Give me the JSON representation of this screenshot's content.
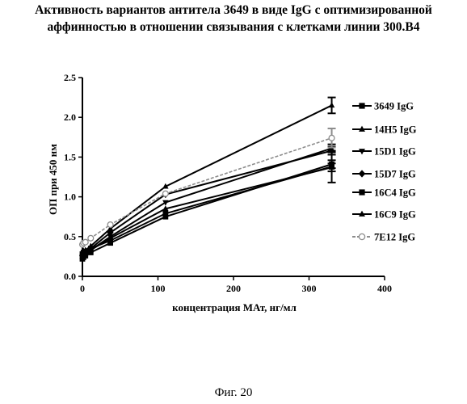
{
  "title_lines": [
    "Активность вариантов антитела 3649 в виде IgG  с оптимизированной",
    "аффинностью в отношении связывания с клетками линии 300.B4"
  ],
  "caption": "Фиг. 20",
  "chart_data": {
    "type": "line",
    "xlabel": "концентрация МАт, нг/мл",
    "ylabel": "ОП при 450 нм",
    "xlim": [
      0,
      400
    ],
    "ylim": [
      0,
      2.5
    ],
    "x_ticks": [
      "0",
      "100",
      "200",
      "300",
      "400"
    ],
    "y_ticks": [
      "0.0",
      "0.5",
      "1.0",
      "1.5",
      "2.0",
      "2.5"
    ],
    "x": [
      0,
      1.4,
      4,
      11,
      37,
      110,
      330
    ],
    "legend_position": "right",
    "series": [
      {
        "name": "3649 IgG",
        "marker": "square",
        "color": "#000000",
        "values": [
          0.28,
          0.3,
          0.31,
          0.35,
          0.45,
          0.79,
          1.38
        ],
        "error": [
          0.02,
          0.02,
          0.02,
          0.02,
          0.03,
          0.03,
          0.2
        ]
      },
      {
        "name": "14H5 IgG",
        "marker": "triangle-up",
        "color": "#000000",
        "values": [
          0.3,
          0.32,
          0.33,
          0.38,
          0.6,
          1.13,
          2.15
        ],
        "error": [
          0.02,
          0.02,
          0.02,
          0.02,
          0.03,
          0.03,
          0.1
        ]
      },
      {
        "name": "15D1 IgG",
        "marker": "triangle-down",
        "color": "#000000",
        "values": [
          0.24,
          0.26,
          0.27,
          0.33,
          0.5,
          0.93,
          1.61
        ],
        "error": [
          0.02,
          0.02,
          0.02,
          0.02,
          0.03,
          0.03,
          0.05
        ]
      },
      {
        "name": "15D7 IgG",
        "marker": "diamond",
        "color": "#000000",
        "values": [
          0.26,
          0.28,
          0.29,
          0.35,
          0.55,
          1.03,
          1.58
        ],
        "error": [
          0.02,
          0.02,
          0.02,
          0.02,
          0.03,
          0.03,
          0.05
        ]
      },
      {
        "name": "16C4 IgG",
        "marker": "square",
        "color": "#000000",
        "values": [
          0.22,
          0.24,
          0.26,
          0.3,
          0.42,
          0.75,
          1.41
        ],
        "error": [
          0.02,
          0.02,
          0.02,
          0.02,
          0.03,
          0.03,
          0.05
        ]
      },
      {
        "name": "16C9 IgG",
        "marker": "triangle-up",
        "color": "#000000",
        "values": [
          0.25,
          0.27,
          0.28,
          0.33,
          0.48,
          0.85,
          1.37
        ],
        "error": [
          0.02,
          0.02,
          0.02,
          0.02,
          0.03,
          0.03,
          0.05
        ]
      },
      {
        "name": "7E12 IgG",
        "marker": "circle-open",
        "color": "#8c8c8c",
        "values": [
          0.4,
          0.42,
          0.43,
          0.48,
          0.65,
          1.04,
          1.74
        ],
        "error": [
          0.02,
          0.02,
          0.02,
          0.02,
          0.03,
          0.03,
          0.12
        ]
      }
    ]
  }
}
